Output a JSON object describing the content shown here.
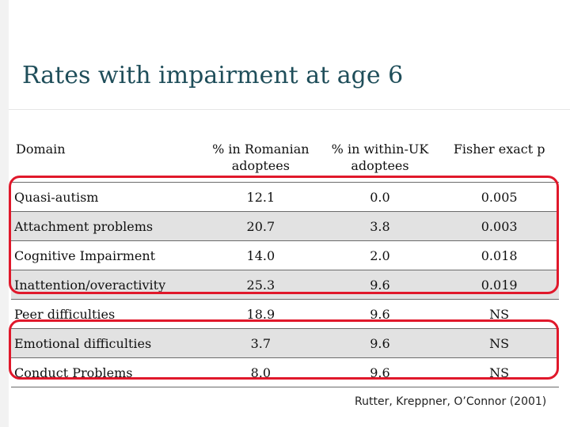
{
  "slide": {
    "title": "Rates with impairment at age 6",
    "citation": "Rutter, Kreppner, O’Connor (2001)",
    "colors": {
      "title": "#1f4e5a",
      "highlight": "#e0182b",
      "row_shade": "#e2e2e2"
    }
  },
  "table": {
    "headers": [
      "Domain",
      "% in Romanian adoptees",
      "% in within-UK adoptees",
      "Fisher exact p"
    ],
    "rows": [
      {
        "domain": "Quasi-autism",
        "romanian": "12.1",
        "uk": "0.0",
        "p": "0.005"
      },
      {
        "domain": "Attachment problems",
        "romanian": "20.7",
        "uk": "3.8",
        "p": "0.003"
      },
      {
        "domain": "Cognitive Impairment",
        "romanian": "14.0",
        "uk": "2.0",
        "p": "0.018"
      },
      {
        "domain": "Inattention/overactivity",
        "romanian": "25.3",
        "uk": "9.6",
        "p": "0.019"
      },
      {
        "domain": "Peer difficulties",
        "romanian": "18.9",
        "uk": "9.6",
        "p": "NS"
      },
      {
        "domain": "Emotional difficulties",
        "romanian": "3.7",
        "uk": "9.6",
        "p": "NS"
      },
      {
        "domain": "Conduct Problems",
        "romanian": "8.0",
        "uk": "9.6",
        "p": "NS"
      }
    ]
  }
}
